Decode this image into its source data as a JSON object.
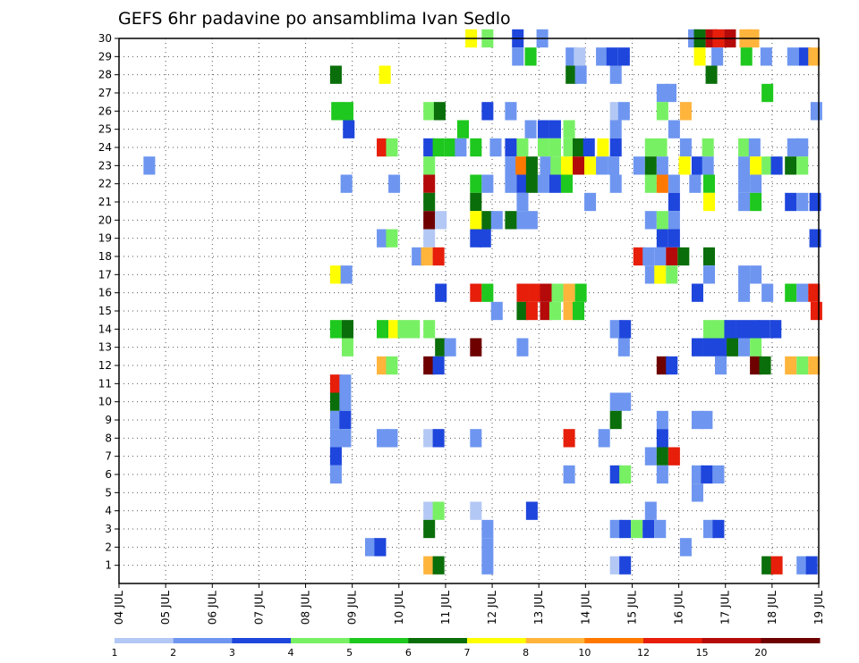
{
  "chart_data": {
    "type": "heatmap",
    "title": "GEFS 6hr padavine po ansamblima Ivan Sedlo",
    "xlabel": "",
    "ylabel": "",
    "x_tick_labels": [
      "04 JUL",
      "05 JUL",
      "06 JUL",
      "07 JUL",
      "08 JUL",
      "09 JUL",
      "10 JUL",
      "11 JUL",
      "12 JUL",
      "13 JUL",
      "14 JUL",
      "15 JUL",
      "16 JUL",
      "17 JUL",
      "18 JUL",
      "19 JUL"
    ],
    "y_tick_labels": [
      "1",
      "2",
      "3",
      "4",
      "5",
      "6",
      "7",
      "8",
      "9",
      "10",
      "11",
      "12",
      "13",
      "14",
      "15",
      "16",
      "17",
      "18",
      "19",
      "20",
      "21",
      "22",
      "23",
      "24",
      "25",
      "26",
      "27",
      "28",
      "29",
      "30"
    ],
    "x_range": [
      0,
      60
    ],
    "y_range": [
      0,
      30
    ],
    "x_unit": "6-hour steps from 04 JUL 00 UTC",
    "y_unit": "ensemble member",
    "grid": true,
    "colorbar": {
      "labels": [
        "1",
        "2",
        "3",
        "4",
        "5",
        "6",
        "7",
        "8",
        "10",
        "12",
        "15",
        "20"
      ],
      "colors": [
        "#b4c8f5",
        "#6e96f0",
        "#1e46dc",
        "#78f064",
        "#1ec81e",
        "#0a6e0a",
        "#ffff00",
        "#ffb43c",
        "#ff7800",
        "#e61e0a",
        "#b40a0a",
        "#6e0000"
      ]
    },
    "cells": [
      {
        "m": 30,
        "t": [
          [
            30.2,
            6
          ],
          [
            31.6,
            3
          ],
          [
            34.2,
            2
          ],
          [
            36.3,
            1
          ],
          [
            49.3,
            1
          ],
          [
            49.8,
            5
          ],
          [
            50.8,
            10
          ],
          [
            51.4,
            9
          ],
          [
            52.4,
            10
          ],
          [
            53.7,
            7
          ],
          [
            54.4,
            7
          ]
        ]
      },
      {
        "m": 29,
        "t": [
          [
            34.2,
            1
          ],
          [
            35.3,
            4
          ],
          [
            38.8,
            1
          ],
          [
            39.5,
            12
          ],
          [
            41.4,
            1
          ],
          [
            42.3,
            2
          ],
          [
            43.3,
            2
          ],
          [
            49.8,
            6
          ],
          [
            51.3,
            1
          ],
          [
            53.8,
            4
          ],
          [
            55.5,
            1
          ],
          [
            57.8,
            1
          ],
          [
            58.8,
            2
          ],
          [
            59.6,
            7
          ]
        ]
      },
      {
        "m": 28,
        "t": [
          [
            18.6,
            5
          ],
          [
            22.8,
            6
          ],
          [
            38.8,
            5
          ],
          [
            39.6,
            1
          ],
          [
            42.6,
            1
          ],
          [
            50.8,
            5
          ]
        ]
      },
      {
        "m": 27,
        "t": [
          [
            46.6,
            1
          ],
          [
            47.3,
            1
          ],
          [
            55.6,
            4
          ]
        ]
      },
      {
        "m": 26,
        "t": [
          [
            18.7,
            4
          ],
          [
            19.6,
            4
          ],
          [
            26.6,
            3
          ],
          [
            27.5,
            5
          ],
          [
            31.6,
            2
          ],
          [
            33.6,
            1
          ],
          [
            42.6,
            12
          ],
          [
            43.3,
            1
          ],
          [
            46.6,
            3
          ],
          [
            48.6,
            7
          ],
          [
            59.8,
            1
          ]
        ]
      },
      {
        "m": 25,
        "t": [
          [
            19.7,
            2
          ],
          [
            29.5,
            4
          ],
          [
            35.3,
            1
          ],
          [
            36.4,
            2
          ],
          [
            37.4,
            2
          ],
          [
            38.6,
            3
          ],
          [
            42.6,
            1
          ],
          [
            47.6,
            1
          ]
        ]
      },
      {
        "m": 24,
        "t": [
          [
            22.6,
            9
          ],
          [
            23.4,
            3
          ],
          [
            26.6,
            2
          ],
          [
            27.4,
            4
          ],
          [
            28.4,
            4
          ],
          [
            29.3,
            1
          ],
          [
            30.6,
            4
          ],
          [
            32.3,
            1
          ],
          [
            33.6,
            2
          ],
          [
            34.6,
            3
          ],
          [
            36.4,
            3
          ],
          [
            37.4,
            3
          ],
          [
            38.6,
            3
          ],
          [
            39.4,
            5
          ],
          [
            40.3,
            2
          ],
          [
            41.5,
            6
          ],
          [
            42.6,
            2
          ],
          [
            45.6,
            3
          ],
          [
            46.5,
            3
          ],
          [
            48.6,
            1
          ],
          [
            50.5,
            3
          ],
          [
            53.6,
            3
          ],
          [
            54.5,
            1
          ],
          [
            57.8,
            1
          ],
          [
            58.6,
            1
          ]
        ]
      },
      {
        "m": 23,
        "t": [
          [
            2.6,
            1
          ],
          [
            26.6,
            3
          ],
          [
            33.6,
            1
          ],
          [
            34.5,
            8
          ],
          [
            35.4,
            5
          ],
          [
            36.6,
            1
          ],
          [
            37.5,
            3
          ],
          [
            38.4,
            6
          ],
          [
            39.4,
            10
          ],
          [
            40.4,
            6
          ],
          [
            41.4,
            1
          ],
          [
            42.4,
            1
          ],
          [
            44.6,
            1
          ],
          [
            45.6,
            5
          ],
          [
            46.6,
            1
          ],
          [
            48.5,
            6
          ],
          [
            49.6,
            2
          ],
          [
            50.5,
            1
          ],
          [
            53.6,
            1
          ],
          [
            54.6,
            6
          ],
          [
            55.6,
            3
          ],
          [
            56.4,
            2
          ],
          [
            57.6,
            5
          ],
          [
            58.6,
            3
          ]
        ]
      },
      {
        "m": 22,
        "t": [
          [
            19.5,
            1
          ],
          [
            23.6,
            1
          ],
          [
            26.6,
            10
          ],
          [
            30.6,
            4
          ],
          [
            31.6,
            1
          ],
          [
            33.6,
            1
          ],
          [
            34.6,
            2
          ],
          [
            35.4,
            5
          ],
          [
            36.4,
            1
          ],
          [
            37.4,
            2
          ],
          [
            38.4,
            4
          ],
          [
            42.6,
            1
          ],
          [
            45.6,
            3
          ],
          [
            46.6,
            8
          ],
          [
            47.6,
            1
          ],
          [
            49.4,
            1
          ],
          [
            50.6,
            4
          ],
          [
            53.6,
            1
          ],
          [
            54.6,
            1
          ]
        ]
      },
      {
        "m": 21,
        "t": [
          [
            26.6,
            5
          ],
          [
            30.6,
            5
          ],
          [
            34.6,
            1
          ],
          [
            40.4,
            1
          ],
          [
            47.6,
            2
          ],
          [
            50.6,
            6
          ],
          [
            53.6,
            1
          ],
          [
            54.6,
            4
          ],
          [
            57.6,
            2
          ],
          [
            58.6,
            1
          ],
          [
            59.7,
            2
          ]
        ]
      },
      {
        "m": 20,
        "t": [
          [
            26.6,
            11
          ],
          [
            27.6,
            12
          ],
          [
            30.6,
            6
          ],
          [
            31.6,
            5
          ],
          [
            32.4,
            1
          ],
          [
            33.6,
            5
          ],
          [
            34.6,
            1
          ],
          [
            35.4,
            1
          ],
          [
            45.6,
            1
          ],
          [
            46.6,
            3
          ],
          [
            47.6,
            1
          ]
        ]
      },
      {
        "m": 19,
        "t": [
          [
            22.6,
            1
          ],
          [
            23.4,
            3
          ],
          [
            26.6,
            12
          ],
          [
            30.6,
            2
          ],
          [
            31.4,
            2
          ],
          [
            46.6,
            2
          ],
          [
            47.6,
            2
          ],
          [
            59.7,
            2
          ]
        ]
      },
      {
        "m": 18,
        "t": [
          [
            25.6,
            1
          ],
          [
            26.4,
            7
          ],
          [
            27.4,
            9
          ],
          [
            44.6,
            9
          ],
          [
            45.4,
            1
          ],
          [
            46.4,
            1
          ],
          [
            47.4,
            10
          ],
          [
            48.4,
            5
          ],
          [
            50.6,
            5
          ]
        ]
      },
      {
        "m": 17,
        "t": [
          [
            18.6,
            6
          ],
          [
            19.5,
            1
          ],
          [
            45.6,
            1
          ],
          [
            46.4,
            6
          ],
          [
            47.4,
            3
          ],
          [
            50.6,
            1
          ],
          [
            53.6,
            1
          ],
          [
            54.6,
            1
          ]
        ]
      },
      {
        "m": 16,
        "t": [
          [
            27.6,
            2
          ],
          [
            30.6,
            9
          ],
          [
            31.6,
            4
          ],
          [
            34.6,
            9
          ],
          [
            35.6,
            9
          ],
          [
            36.6,
            10
          ],
          [
            37.6,
            3
          ],
          [
            38.6,
            7
          ],
          [
            39.6,
            4
          ],
          [
            49.6,
            2
          ],
          [
            53.6,
            1
          ],
          [
            55.6,
            1
          ],
          [
            57.6,
            4
          ],
          [
            58.6,
            1
          ],
          [
            59.6,
            9
          ]
        ]
      },
      {
        "m": 15,
        "t": [
          [
            32.4,
            1
          ],
          [
            34.6,
            5
          ],
          [
            35.4,
            9
          ],
          [
            36.6,
            10
          ],
          [
            37.4,
            3
          ],
          [
            38.6,
            7
          ],
          [
            39.4,
            4
          ],
          [
            59.8,
            9
          ]
        ]
      },
      {
        "m": 14,
        "t": [
          [
            18.6,
            4
          ],
          [
            19.6,
            5
          ],
          [
            22.6,
            4
          ],
          [
            23.6,
            6
          ],
          [
            24.4,
            3
          ],
          [
            25.3,
            3
          ],
          [
            26.6,
            3
          ],
          [
            42.6,
            1
          ],
          [
            43.4,
            2
          ],
          [
            50.6,
            3
          ],
          [
            51.5,
            3
          ],
          [
            52.4,
            2
          ],
          [
            53.4,
            2
          ],
          [
            54.4,
            2
          ],
          [
            55.3,
            2
          ],
          [
            56.3,
            2
          ]
        ]
      },
      {
        "m": 13,
        "t": [
          [
            19.6,
            3
          ],
          [
            27.6,
            5
          ],
          [
            28.4,
            1
          ],
          [
            30.6,
            11
          ],
          [
            34.6,
            1
          ],
          [
            43.3,
            1
          ],
          [
            49.6,
            2
          ],
          [
            50.6,
            2
          ],
          [
            51.6,
            2
          ],
          [
            52.6,
            5
          ],
          [
            53.6,
            1
          ],
          [
            54.6,
            3
          ]
        ]
      },
      {
        "m": 12,
        "t": [
          [
            22.6,
            7
          ],
          [
            23.4,
            3
          ],
          [
            26.6,
            11
          ],
          [
            27.4,
            2
          ],
          [
            46.6,
            11
          ],
          [
            47.4,
            2
          ],
          [
            51.6,
            1
          ],
          [
            54.6,
            11
          ],
          [
            55.4,
            5
          ],
          [
            57.6,
            7
          ],
          [
            58.6,
            3
          ],
          [
            59.6,
            7
          ]
        ]
      },
      {
        "m": 11,
        "t": [
          [
            18.6,
            9
          ],
          [
            19.4,
            1
          ]
        ]
      },
      {
        "m": 10,
        "t": [
          [
            18.6,
            5
          ],
          [
            19.4,
            1
          ],
          [
            42.6,
            1
          ],
          [
            43.4,
            1
          ]
        ]
      },
      {
        "m": 9,
        "t": [
          [
            18.6,
            1
          ],
          [
            19.4,
            2
          ],
          [
            42.6,
            5
          ],
          [
            46.6,
            1
          ],
          [
            49.6,
            1
          ],
          [
            50.4,
            1
          ]
        ]
      },
      {
        "m": 8,
        "t": [
          [
            18.6,
            1
          ],
          [
            19.4,
            1
          ],
          [
            22.6,
            1
          ],
          [
            23.4,
            1
          ],
          [
            26.6,
            12
          ],
          [
            27.4,
            2
          ],
          [
            30.6,
            1
          ],
          [
            38.6,
            9
          ],
          [
            41.6,
            1
          ],
          [
            46.6,
            2
          ]
        ]
      },
      {
        "m": 7,
        "t": [
          [
            18.6,
            2
          ],
          [
            45.6,
            1
          ],
          [
            46.6,
            5
          ],
          [
            47.6,
            9
          ]
        ]
      },
      {
        "m": 6,
        "t": [
          [
            18.6,
            1
          ],
          [
            38.6,
            1
          ],
          [
            42.6,
            2
          ],
          [
            43.4,
            3
          ],
          [
            46.6,
            1
          ],
          [
            49.6,
            1
          ],
          [
            50.4,
            2
          ],
          [
            51.4,
            1
          ]
        ]
      },
      {
        "m": 5,
        "t": [
          [
            49.6,
            1
          ]
        ]
      },
      {
        "m": 4,
        "t": [
          [
            26.6,
            12
          ],
          [
            27.4,
            3
          ],
          [
            30.6,
            12
          ],
          [
            35.4,
            2
          ],
          [
            45.6,
            1
          ]
        ]
      },
      {
        "m": 3,
        "t": [
          [
            26.6,
            5
          ],
          [
            31.6,
            1
          ],
          [
            42.6,
            1
          ],
          [
            43.4,
            2
          ],
          [
            44.4,
            3
          ],
          [
            45.4,
            2
          ],
          [
            46.4,
            1
          ],
          [
            50.6,
            1
          ],
          [
            51.4,
            2
          ]
        ]
      },
      {
        "m": 2,
        "t": [
          [
            21.6,
            1
          ],
          [
            22.4,
            2
          ],
          [
            31.6,
            1
          ],
          [
            48.6,
            1
          ]
        ]
      },
      {
        "m": 1,
        "t": [
          [
            26.6,
            7
          ],
          [
            27.4,
            5
          ],
          [
            31.6,
            1
          ],
          [
            42.6,
            12
          ],
          [
            43.4,
            2
          ],
          [
            55.6,
            5
          ],
          [
            56.4,
            9
          ],
          [
            58.6,
            1
          ],
          [
            59.4,
            2
          ]
        ]
      }
    ]
  }
}
